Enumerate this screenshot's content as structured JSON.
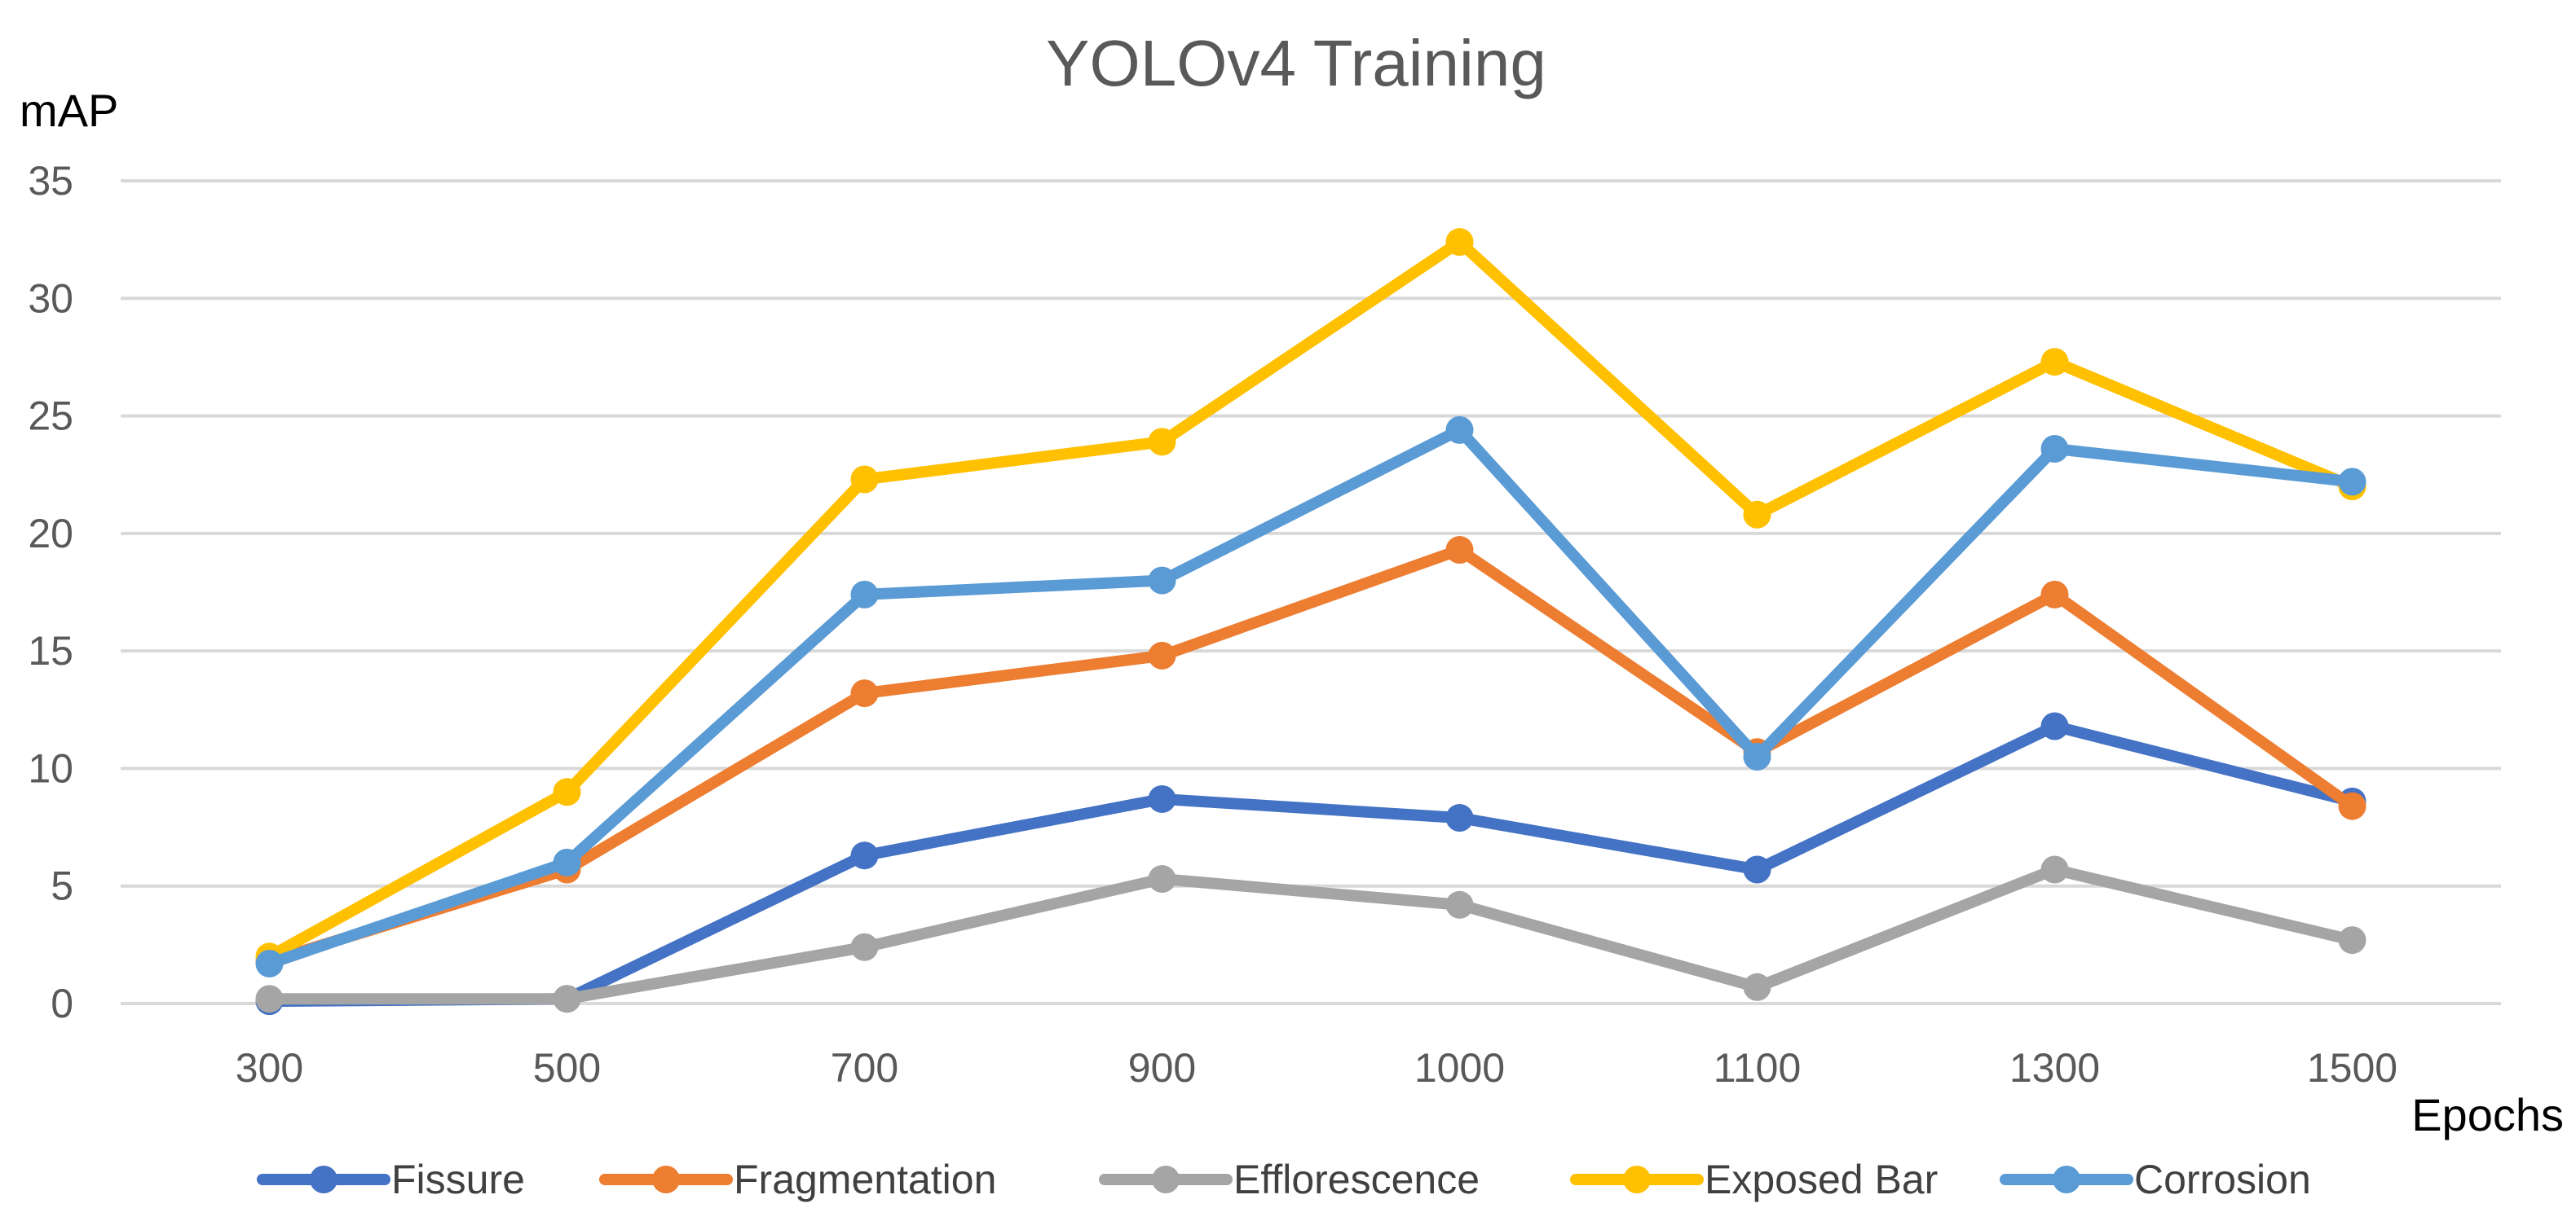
{
  "chart_data": {
    "type": "line",
    "title": "YOLOv4 Training",
    "xlabel": "Epochs",
    "ylabel": "mAP",
    "categories": [
      "300",
      "500",
      "700",
      "900",
      "1000",
      "1100",
      "1300",
      "1500"
    ],
    "ylim": [
      0,
      35
    ],
    "yticks": [
      "0",
      "5",
      "10",
      "15",
      "20",
      "25",
      "30",
      "35"
    ],
    "grid": true,
    "legend_position": "bottom",
    "series": [
      {
        "name": "Fissure",
        "color": "#4472c4",
        "values": [
          0.1,
          0.2,
          6.3,
          8.7,
          7.9,
          5.7,
          11.8,
          8.6
        ]
      },
      {
        "name": "Fragmentation",
        "color": "#ed7d31",
        "values": [
          1.8,
          5.7,
          13.2,
          14.8,
          19.3,
          10.7,
          17.4,
          8.4
        ]
      },
      {
        "name": "Efflorescence",
        "color": "#a5a5a5",
        "values": [
          0.2,
          0.2,
          2.4,
          5.3,
          4.2,
          0.7,
          5.7,
          2.7
        ]
      },
      {
        "name": "Exposed Bar",
        "color": "#ffc000",
        "values": [
          2.0,
          9.0,
          22.3,
          23.9,
          32.4,
          20.8,
          27.3,
          22.0
        ]
      },
      {
        "name": "Corrosion",
        "color": "#5b9bd5",
        "values": [
          1.7,
          6.0,
          17.4,
          18.0,
          24.4,
          10.5,
          23.6,
          22.2
        ]
      }
    ]
  }
}
